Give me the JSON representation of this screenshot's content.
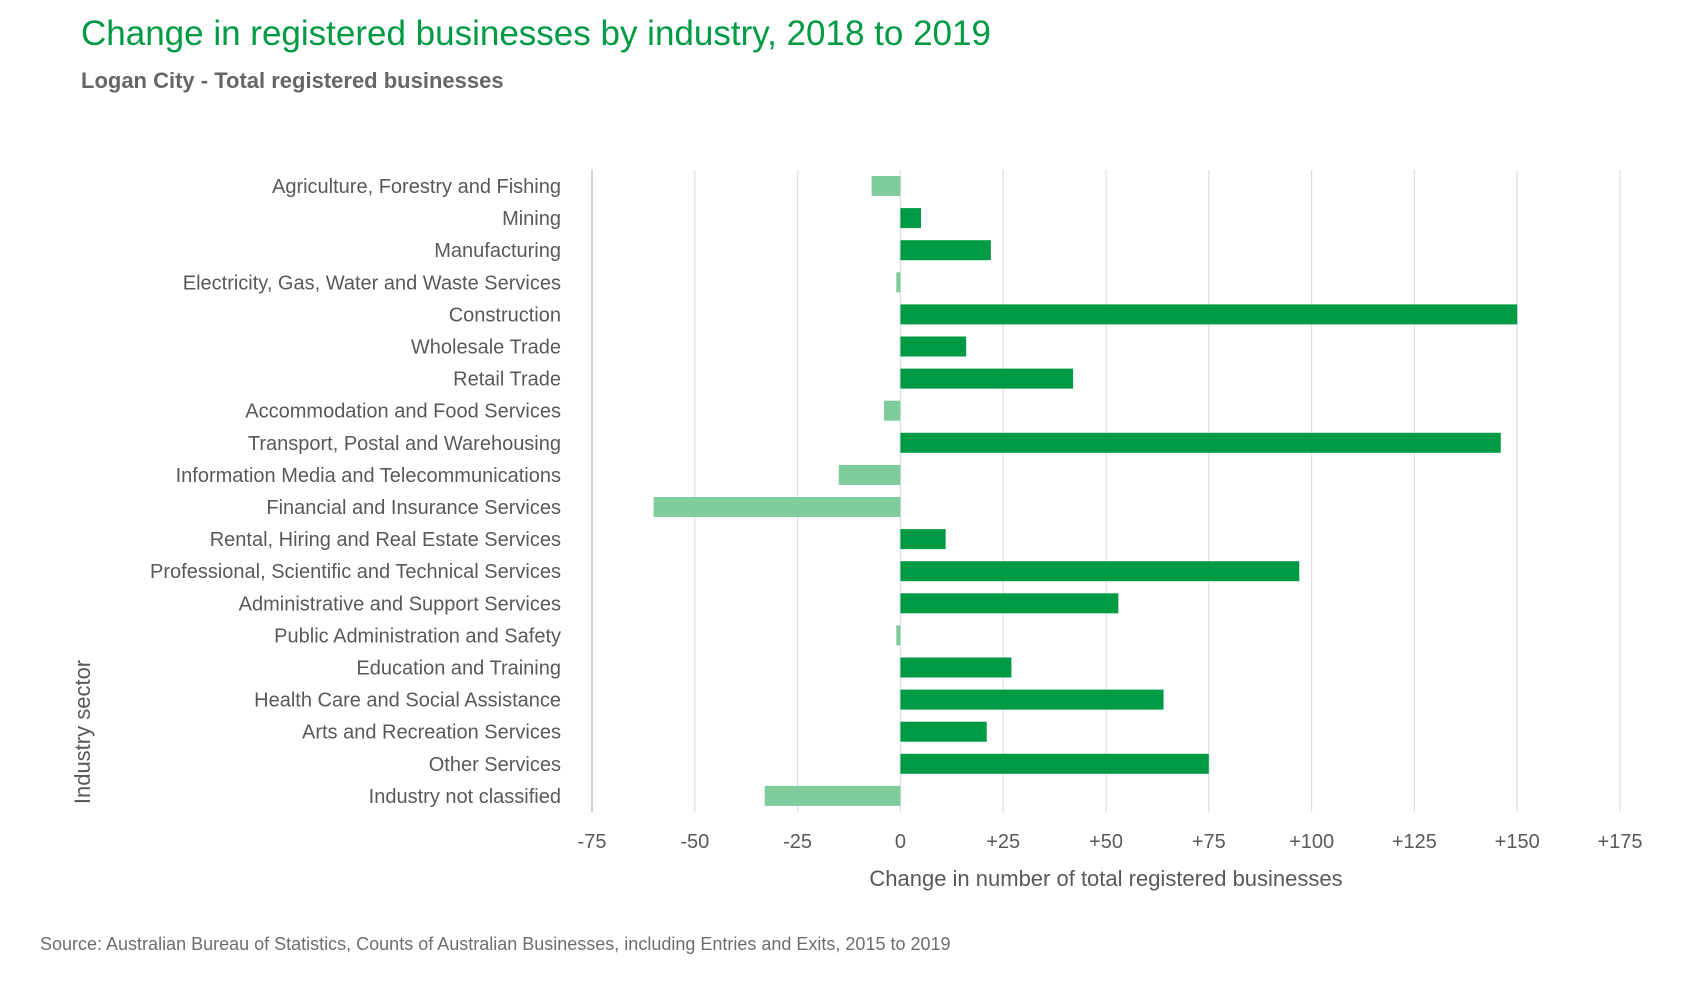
{
  "header": {
    "title": "Change in registered businesses by industry, 2018 to 2019",
    "subtitle": "Logan City - Total registered businesses"
  },
  "footer": {
    "source": "Source: Australian Bureau of Statistics, Counts of Australian Businesses, including Entries and Exits, 2015 to 2019"
  },
  "colors": {
    "positive": "#009a44",
    "negative": "#7fcc9d",
    "grid": "#dcdfe3",
    "title": "#009a44"
  },
  "chart_data": {
    "type": "bar",
    "orientation": "horizontal",
    "xlabel": "Change in number of total registered businesses",
    "ylabel": "Industry sector",
    "xlim": [
      -75,
      175
    ],
    "xticks": [
      -75,
      -50,
      -25,
      0,
      25,
      50,
      75,
      100,
      125,
      150,
      175
    ],
    "xtick_labels": [
      "-75",
      "-50",
      "-25",
      "0",
      "+25",
      "+50",
      "+75",
      "+100",
      "+125",
      "+150",
      "+175"
    ],
    "grid": "vertical",
    "categories": [
      "Agriculture, Forestry and Fishing",
      "Mining",
      "Manufacturing",
      "Electricity, Gas, Water and Waste Services",
      "Construction",
      "Wholesale Trade",
      "Retail Trade",
      "Accommodation and Food Services",
      "Transport, Postal and Warehousing",
      "Information Media and Telecommunications",
      "Financial and Insurance Services",
      "Rental, Hiring and Real Estate Services",
      "Professional, Scientific and Technical Services",
      "Administrative and Support Services",
      "Public Administration and Safety",
      "Education and Training",
      "Health Care and Social Assistance",
      "Arts and Recreation Services",
      "Other Services",
      "Industry not classified"
    ],
    "values": [
      -7,
      5,
      22,
      -1,
      150,
      16,
      42,
      -4,
      146,
      -15,
      -60,
      11,
      97,
      53,
      -1,
      27,
      64,
      21,
      75,
      -33
    ]
  }
}
